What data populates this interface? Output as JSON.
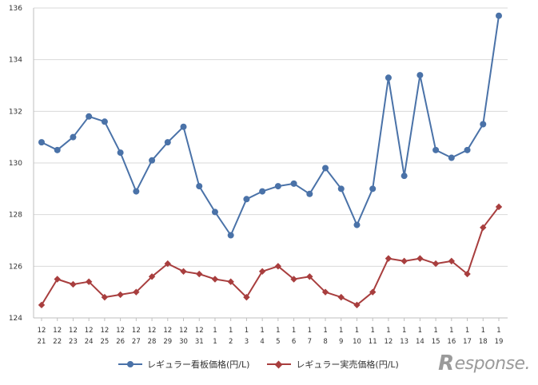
{
  "chart_data": {
    "type": "line",
    "title": "",
    "xlabel": "",
    "ylabel": "",
    "ylim": [
      124,
      136
    ],
    "yticks": [
      124,
      126,
      128,
      130,
      132,
      134,
      136
    ],
    "grid": "horizontal",
    "legend_position": "bottom",
    "categories": [
      {
        "month": "12",
        "day": "21"
      },
      {
        "month": "12",
        "day": "22"
      },
      {
        "month": "12",
        "day": "23"
      },
      {
        "month": "12",
        "day": "24"
      },
      {
        "month": "12",
        "day": "25"
      },
      {
        "month": "12",
        "day": "26"
      },
      {
        "month": "12",
        "day": "27"
      },
      {
        "month": "12",
        "day": "28"
      },
      {
        "month": "12",
        "day": "29"
      },
      {
        "month": "12",
        "day": "30"
      },
      {
        "month": "12",
        "day": "31"
      },
      {
        "month": "1",
        "day": "1"
      },
      {
        "month": "1",
        "day": "2"
      },
      {
        "month": "1",
        "day": "3"
      },
      {
        "month": "1",
        "day": "4"
      },
      {
        "month": "1",
        "day": "5"
      },
      {
        "month": "1",
        "day": "6"
      },
      {
        "month": "1",
        "day": "7"
      },
      {
        "month": "1",
        "day": "8"
      },
      {
        "month": "1",
        "day": "9"
      },
      {
        "month": "1",
        "day": "10"
      },
      {
        "month": "1",
        "day": "11"
      },
      {
        "month": "1",
        "day": "12"
      },
      {
        "month": "1",
        "day": "13"
      },
      {
        "month": "1",
        "day": "14"
      },
      {
        "month": "1",
        "day": "15"
      },
      {
        "month": "1",
        "day": "16"
      },
      {
        "month": "1",
        "day": "17"
      },
      {
        "month": "1",
        "day": "18"
      },
      {
        "month": "1",
        "day": "19"
      }
    ],
    "series": [
      {
        "name": "レギュラー看板価格(円/L)",
        "color": "#4a72a8",
        "marker": "circle",
        "values": [
          130.8,
          130.5,
          131.0,
          131.8,
          131.6,
          130.4,
          128.9,
          130.1,
          130.8,
          131.4,
          129.1,
          128.1,
          127.2,
          128.6,
          128.9,
          129.1,
          129.2,
          128.8,
          129.8,
          129.0,
          127.6,
          129.0,
          133.3,
          129.5,
          133.4,
          130.5,
          130.2,
          130.5,
          131.5,
          135.7
        ]
      },
      {
        "name": "レギュラー実売価格(円/L)",
        "color": "#a83e3e",
        "marker": "diamond",
        "values": [
          124.5,
          125.5,
          125.3,
          125.4,
          124.8,
          124.9,
          125.0,
          125.6,
          126.1,
          125.8,
          125.7,
          125.5,
          125.4,
          124.8,
          125.8,
          126.0,
          125.5,
          125.6,
          125.0,
          124.8,
          124.5,
          125.0,
          126.3,
          126.2,
          126.3,
          126.1,
          126.2,
          125.7,
          127.5,
          128.3
        ]
      }
    ]
  },
  "watermark": {
    "mark": "R",
    "text": "esponse."
  }
}
